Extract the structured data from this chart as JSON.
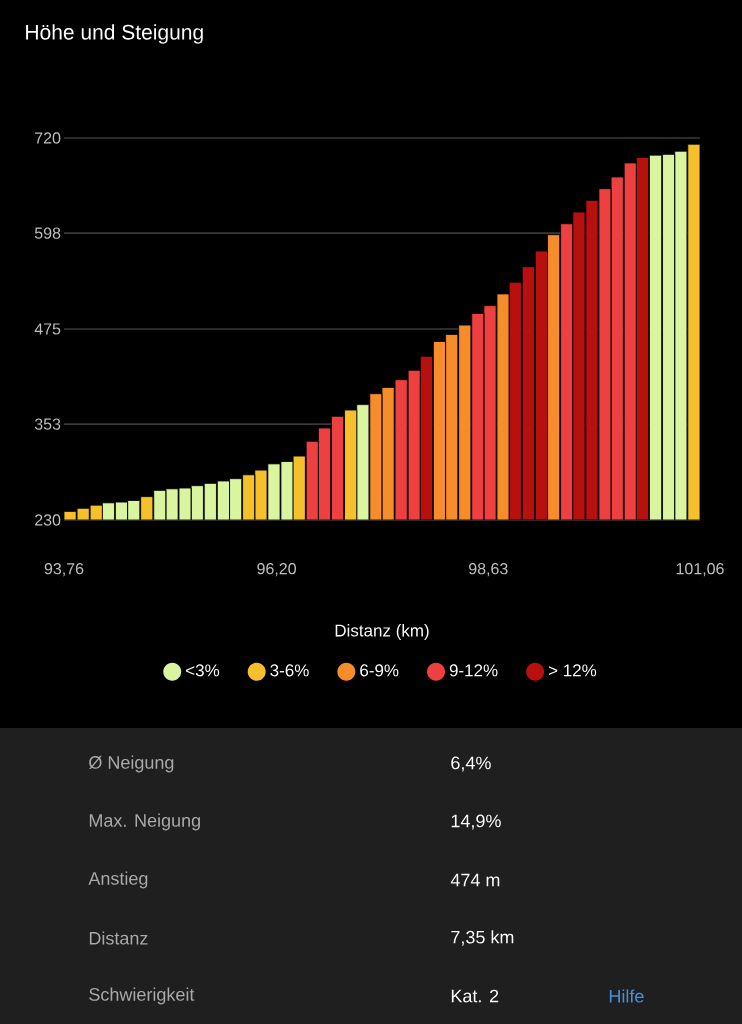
{
  "chart_data": {
    "type": "bar",
    "title": "Höhe und Steigung",
    "xlabel": "Distanz (km)",
    "xlim": [
      93.76,
      101.06
    ],
    "xticks": [
      {
        "value": 93.76,
        "label": "93,76"
      },
      {
        "value": 96.2,
        "label": "96,20"
      },
      {
        "value": 98.63,
        "label": "98,63"
      },
      {
        "value": 101.06,
        "label": "101,06"
      }
    ],
    "ylim": [
      230,
      720
    ],
    "yticks": [
      230,
      353,
      475,
      598,
      720
    ],
    "grid": "y",
    "legend": "bottom",
    "series": [
      {
        "name": "<3%",
        "color": "#d9f5a0",
        "x": [
          94.27,
          94.42,
          94.56,
          94.86,
          95.0,
          95.15,
          95.29,
          95.44,
          95.59,
          95.73,
          96.17,
          96.32,
          97.19,
          100.55,
          100.7,
          100.84
        ],
        "values": [
          252,
          253,
          255,
          268,
          270,
          271,
          274,
          277,
          280,
          283,
          302,
          305,
          378,
          698,
          699,
          703
        ]
      },
      {
        "name": "3-6%",
        "color": "#f5c02c",
        "x": [
          93.83,
          93.98,
          94.13,
          94.71,
          95.88,
          96.02,
          96.46,
          97.05,
          100.99
        ],
        "values": [
          241,
          245,
          249,
          260,
          288,
          294,
          312,
          371,
          712
        ]
      },
      {
        "name": "6-9%",
        "color": "#f78c2a",
        "x": [
          97.34,
          97.48,
          98.07,
          98.21,
          98.36,
          98.8,
          99.38
        ],
        "values": [
          392,
          400,
          459,
          468,
          480,
          520,
          596
        ]
      },
      {
        "name": "9-12%",
        "color": "#ee4040",
        "x": [
          96.61,
          96.75,
          96.9,
          97.63,
          97.78,
          98.51,
          98.65,
          99.53,
          99.97,
          100.11,
          100.26
        ],
        "values": [
          331,
          348,
          363,
          410,
          422,
          495,
          505,
          610,
          655,
          670,
          688
        ]
      },
      {
        "name": "> 12%",
        "color": "#b80f0f",
        "x": [
          97.92,
          98.94,
          99.09,
          99.24,
          99.67,
          99.82,
          100.4
        ],
        "values": [
          440,
          535,
          555,
          575,
          625,
          640,
          695
        ]
      }
    ],
    "annotations": [
      "Ø Neigung",
      "6,4%",
      "Max. Neigung",
      "14,9%",
      "Anstieg",
      "474 m",
      "Distanz",
      "7,35 km",
      "Schwierigkeit",
      "Kat. 2",
      "Hilfe"
    ]
  }
}
